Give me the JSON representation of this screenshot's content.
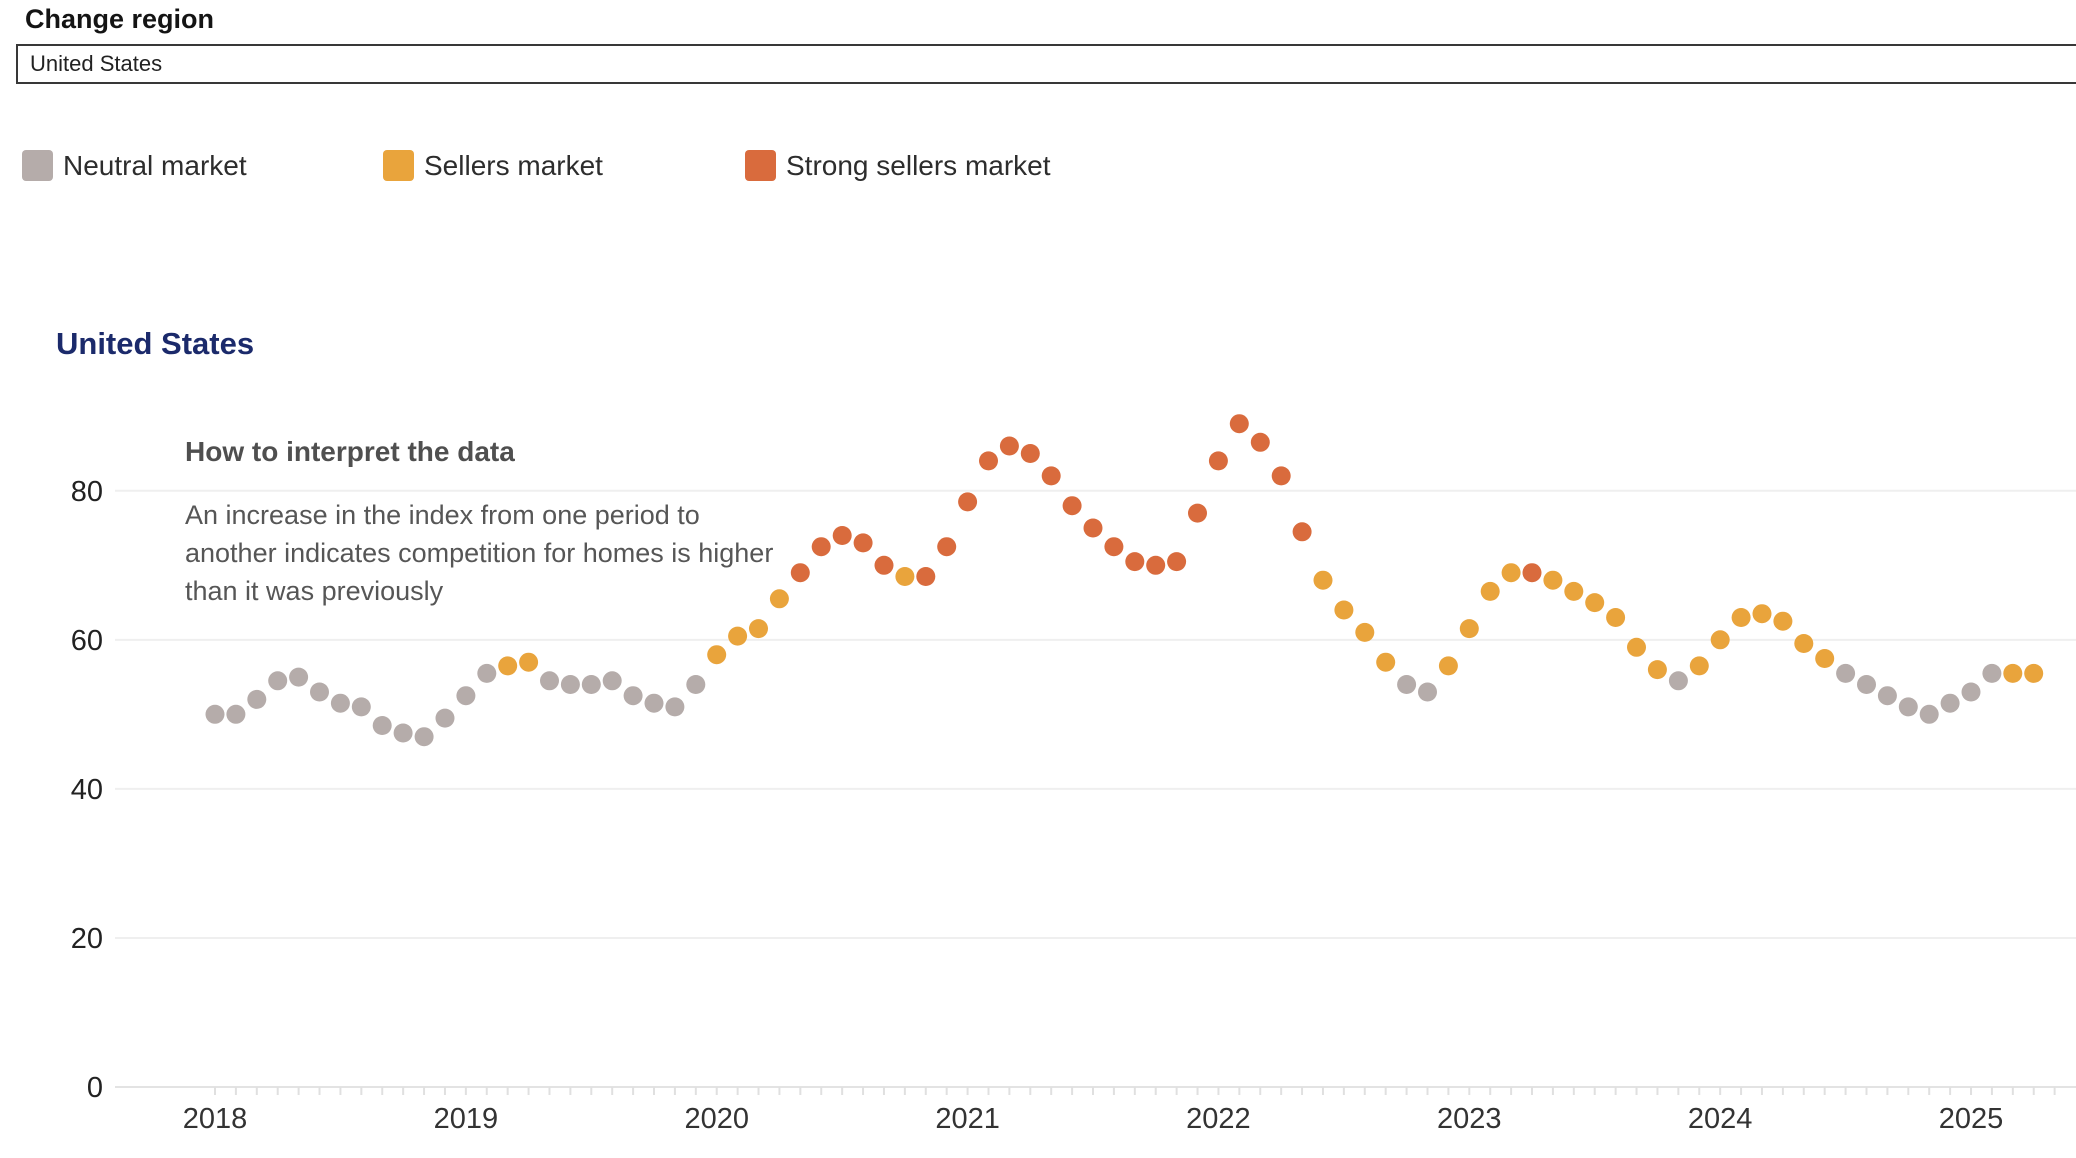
{
  "header": {
    "label": "Change region"
  },
  "region_selector": {
    "value": "United States"
  },
  "legend": {
    "items": [
      {
        "key": "neutral",
        "label": "Neutral market",
        "color": "#b5acaa"
      },
      {
        "key": "sellers",
        "label": "Sellers market",
        "color": "#e9a43c"
      },
      {
        "key": "strong_sellers",
        "label": "Strong sellers market",
        "color": "#d96b3d"
      }
    ]
  },
  "chart": {
    "title": "United States"
  },
  "annotation": {
    "heading": "How to interpret the data",
    "lines": [
      "An increase in the index from one period to",
      "another indicates competition for homes is higher",
      "than it was previously"
    ]
  },
  "chart_data": {
    "type": "scatter",
    "title": "United States",
    "xlabel": "",
    "ylabel": "",
    "ylim": [
      0,
      90
    ],
    "yticks": [
      "0",
      "20",
      "40",
      "60",
      "80"
    ],
    "xticks": [
      "2018",
      "2019",
      "2020",
      "2021",
      "2022",
      "2023",
      "2024",
      "2025"
    ],
    "grid": true,
    "legend_position": "top",
    "market_colors": {
      "neutral": "#b5acaa",
      "sellers": "#e9a43c",
      "strong_sellers": "#d96b3d"
    },
    "points": [
      {
        "date": "2018-01",
        "value": 50,
        "market": "neutral"
      },
      {
        "date": "2018-02",
        "value": 50,
        "market": "neutral"
      },
      {
        "date": "2018-03",
        "value": 52,
        "market": "neutral"
      },
      {
        "date": "2018-04",
        "value": 54.5,
        "market": "neutral"
      },
      {
        "date": "2018-05",
        "value": 55,
        "market": "neutral"
      },
      {
        "date": "2018-06",
        "value": 53,
        "market": "neutral"
      },
      {
        "date": "2018-07",
        "value": 51.5,
        "market": "neutral"
      },
      {
        "date": "2018-08",
        "value": 51,
        "market": "neutral"
      },
      {
        "date": "2018-09",
        "value": 48.5,
        "market": "neutral"
      },
      {
        "date": "2018-10",
        "value": 47.5,
        "market": "neutral"
      },
      {
        "date": "2018-11",
        "value": 47,
        "market": "neutral"
      },
      {
        "date": "2018-12",
        "value": 49.5,
        "market": "neutral"
      },
      {
        "date": "2019-01",
        "value": 52.5,
        "market": "neutral"
      },
      {
        "date": "2019-02",
        "value": 55.5,
        "market": "neutral"
      },
      {
        "date": "2019-03",
        "value": 56.5,
        "market": "sellers"
      },
      {
        "date": "2019-04",
        "value": 57,
        "market": "sellers"
      },
      {
        "date": "2019-05",
        "value": 54.5,
        "market": "neutral"
      },
      {
        "date": "2019-06",
        "value": 54,
        "market": "neutral"
      },
      {
        "date": "2019-07",
        "value": 54,
        "market": "neutral"
      },
      {
        "date": "2019-08",
        "value": 54.5,
        "market": "neutral"
      },
      {
        "date": "2019-09",
        "value": 52.5,
        "market": "neutral"
      },
      {
        "date": "2019-10",
        "value": 51.5,
        "market": "neutral"
      },
      {
        "date": "2019-11",
        "value": 51,
        "market": "neutral"
      },
      {
        "date": "2019-12",
        "value": 54,
        "market": "neutral"
      },
      {
        "date": "2020-01",
        "value": 58,
        "market": "sellers"
      },
      {
        "date": "2020-02",
        "value": 60.5,
        "market": "sellers"
      },
      {
        "date": "2020-03",
        "value": 61.5,
        "market": "sellers"
      },
      {
        "date": "2020-04",
        "value": 65.5,
        "market": "sellers"
      },
      {
        "date": "2020-05",
        "value": 69,
        "market": "strong_sellers"
      },
      {
        "date": "2020-06",
        "value": 72.5,
        "market": "strong_sellers"
      },
      {
        "date": "2020-07",
        "value": 74,
        "market": "strong_sellers"
      },
      {
        "date": "2020-08",
        "value": 73,
        "market": "strong_sellers"
      },
      {
        "date": "2020-09",
        "value": 70,
        "market": "strong_sellers"
      },
      {
        "date": "2020-10",
        "value": 68.5,
        "market": "sellers"
      },
      {
        "date": "2020-11",
        "value": 68.5,
        "market": "strong_sellers"
      },
      {
        "date": "2020-12",
        "value": 72.5,
        "market": "strong_sellers"
      },
      {
        "date": "2021-01",
        "value": 78.5,
        "market": "strong_sellers"
      },
      {
        "date": "2021-02",
        "value": 84,
        "market": "strong_sellers"
      },
      {
        "date": "2021-03",
        "value": 86,
        "market": "strong_sellers"
      },
      {
        "date": "2021-04",
        "value": 85,
        "market": "strong_sellers"
      },
      {
        "date": "2021-05",
        "value": 82,
        "market": "strong_sellers"
      },
      {
        "date": "2021-06",
        "value": 78,
        "market": "strong_sellers"
      },
      {
        "date": "2021-07",
        "value": 75,
        "market": "strong_sellers"
      },
      {
        "date": "2021-08",
        "value": 72.5,
        "market": "strong_sellers"
      },
      {
        "date": "2021-09",
        "value": 70.5,
        "market": "strong_sellers"
      },
      {
        "date": "2021-10",
        "value": 70,
        "market": "strong_sellers"
      },
      {
        "date": "2021-11",
        "value": 70.5,
        "market": "strong_sellers"
      },
      {
        "date": "2021-12",
        "value": 77,
        "market": "strong_sellers"
      },
      {
        "date": "2022-01",
        "value": 84,
        "market": "strong_sellers"
      },
      {
        "date": "2022-02",
        "value": 89,
        "market": "strong_sellers"
      },
      {
        "date": "2022-03",
        "value": 86.5,
        "market": "strong_sellers"
      },
      {
        "date": "2022-04",
        "value": 82,
        "market": "strong_sellers"
      },
      {
        "date": "2022-05",
        "value": 74.5,
        "market": "strong_sellers"
      },
      {
        "date": "2022-06",
        "value": 68,
        "market": "sellers"
      },
      {
        "date": "2022-07",
        "value": 64,
        "market": "sellers"
      },
      {
        "date": "2022-08",
        "value": 61,
        "market": "sellers"
      },
      {
        "date": "2022-09",
        "value": 57,
        "market": "sellers"
      },
      {
        "date": "2022-10",
        "value": 54,
        "market": "neutral"
      },
      {
        "date": "2022-11",
        "value": 53,
        "market": "neutral"
      },
      {
        "date": "2022-12",
        "value": 56.5,
        "market": "sellers"
      },
      {
        "date": "2023-01",
        "value": 61.5,
        "market": "sellers"
      },
      {
        "date": "2023-02",
        "value": 66.5,
        "market": "sellers"
      },
      {
        "date": "2023-03",
        "value": 69,
        "market": "sellers"
      },
      {
        "date": "2023-04",
        "value": 69,
        "market": "strong_sellers"
      },
      {
        "date": "2023-05",
        "value": 68,
        "market": "sellers"
      },
      {
        "date": "2023-06",
        "value": 66.5,
        "market": "sellers"
      },
      {
        "date": "2023-07",
        "value": 65,
        "market": "sellers"
      },
      {
        "date": "2023-08",
        "value": 63,
        "market": "sellers"
      },
      {
        "date": "2023-09",
        "value": 59,
        "market": "sellers"
      },
      {
        "date": "2023-10",
        "value": 56,
        "market": "sellers"
      },
      {
        "date": "2023-11",
        "value": 54.5,
        "market": "neutral"
      },
      {
        "date": "2023-12",
        "value": 56.5,
        "market": "sellers"
      },
      {
        "date": "2024-01",
        "value": 60,
        "market": "sellers"
      },
      {
        "date": "2024-02",
        "value": 63,
        "market": "sellers"
      },
      {
        "date": "2024-03",
        "value": 63.5,
        "market": "sellers"
      },
      {
        "date": "2024-04",
        "value": 62.5,
        "market": "sellers"
      },
      {
        "date": "2024-05",
        "value": 59.5,
        "market": "sellers"
      },
      {
        "date": "2024-06",
        "value": 57.5,
        "market": "sellers"
      },
      {
        "date": "2024-07",
        "value": 55.5,
        "market": "neutral"
      },
      {
        "date": "2024-08",
        "value": 54,
        "market": "neutral"
      },
      {
        "date": "2024-09",
        "value": 52.5,
        "market": "neutral"
      },
      {
        "date": "2024-10",
        "value": 51,
        "market": "neutral"
      },
      {
        "date": "2024-11",
        "value": 50,
        "market": "neutral"
      },
      {
        "date": "2024-12",
        "value": 51.5,
        "market": "neutral"
      },
      {
        "date": "2025-01",
        "value": 53,
        "market": "neutral"
      },
      {
        "date": "2025-02",
        "value": 55.5,
        "market": "neutral"
      },
      {
        "date": "2025-03",
        "value": 55.5,
        "market": "sellers"
      },
      {
        "date": "2025-04",
        "value": 55.5,
        "market": "sellers"
      }
    ]
  }
}
